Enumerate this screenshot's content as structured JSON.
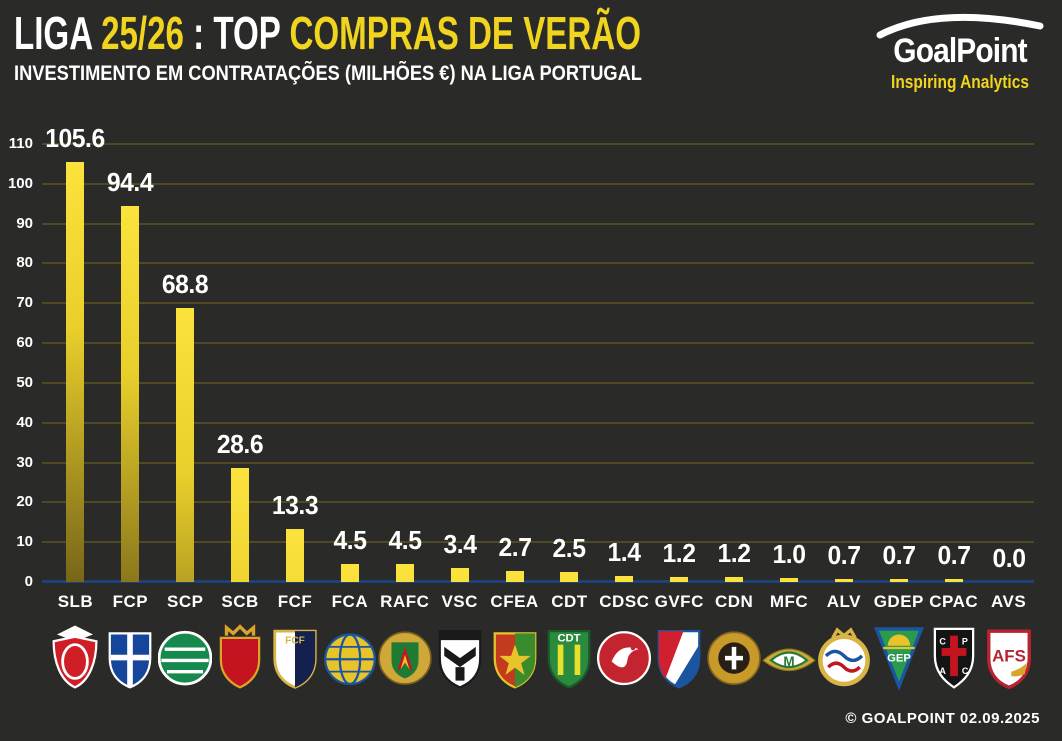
{
  "theme": {
    "background": "#2a2a28",
    "accent_yellow": "#f0d41e",
    "text_white": "#ffffff",
    "bar_top": "#fce23c",
    "bar_bottom": "#6f5e17",
    "gridline": "#4f4a24",
    "baseline_blue": "#1e4178"
  },
  "header": {
    "title_parts": [
      {
        "text": "LIGA ",
        "color": "#ffffff"
      },
      {
        "text": "25/26",
        "color": "#f0d41e"
      },
      {
        "text": " : TOP ",
        "color": "#ffffff"
      },
      {
        "text": "COMPRAS DE VERÃO",
        "color": "#f0d41e"
      }
    ],
    "subtitle": "INVESTIMENTO EM CONTRATAÇÕES (MILHÕES €) NA LIGA PORTUGAL",
    "brand": {
      "name": "GoalPoint",
      "tagline": "Inspiring Analytics"
    }
  },
  "chart_data": {
    "type": "bar",
    "title": "LIGA 25/26 : TOP COMPRAS DE VERÃO",
    "subtitle": "INVESTIMENTO EM CONTRATAÇÕES (MILHÕES €) NA LIGA PORTUGAL",
    "categories": [
      "SLB",
      "FCP",
      "SCP",
      "SCB",
      "FCF",
      "FCA",
      "RAFC",
      "VSC",
      "CFEA",
      "CDT",
      "CDSC",
      "GVFC",
      "CDN",
      "MFC",
      "ALV",
      "GDEP",
      "CPAC",
      "AVS"
    ],
    "values": [
      105.6,
      94.4,
      68.8,
      28.6,
      13.3,
      4.5,
      4.5,
      3.4,
      2.7,
      2.5,
      1.4,
      1.2,
      1.2,
      1.0,
      0.7,
      0.7,
      0.7,
      0.0
    ],
    "xlabel": "",
    "ylabel": "",
    "ylim": [
      0,
      110
    ],
    "ytick_step": 10,
    "grid": "horizontal",
    "legend": "none",
    "bar_color": "#f2d729",
    "value_labels": "above-bars"
  },
  "clubs": [
    {
      "abbr": "SLB",
      "logo": "slb",
      "colors": [
        "#d01e26",
        "#ffffff"
      ]
    },
    {
      "abbr": "FCP",
      "logo": "fcp",
      "colors": [
        "#16469b",
        "#ffffff"
      ]
    },
    {
      "abbr": "SCP",
      "logo": "scp",
      "colors": [
        "#168a4c",
        "#ffffff"
      ]
    },
    {
      "abbr": "SCB",
      "logo": "scb",
      "colors": [
        "#c41420",
        "#d8a52a"
      ]
    },
    {
      "abbr": "FCF",
      "logo": "fcf",
      "colors": [
        "#14204e",
        "#ffffff",
        "#d8b544"
      ]
    },
    {
      "abbr": "FCA",
      "logo": "fca",
      "colors": [
        "#e8c42a",
        "#1b55a0"
      ]
    },
    {
      "abbr": "RAFC",
      "logo": "rafc",
      "colors": [
        "#cfa83a",
        "#1f7a33",
        "#c41420"
      ]
    },
    {
      "abbr": "VSC",
      "logo": "vsc",
      "colors": [
        "#1a1a1a",
        "#ffffff"
      ]
    },
    {
      "abbr": "CFEA",
      "logo": "cfea",
      "colors": [
        "#c43a1e",
        "#3a8a2e",
        "#e8c42a"
      ]
    },
    {
      "abbr": "CDT",
      "logo": "cdt",
      "colors": [
        "#2a8a3e",
        "#e8e02a",
        "#ffffff"
      ]
    },
    {
      "abbr": "CDSC",
      "logo": "cdsc",
      "colors": [
        "#c42430",
        "#ffffff"
      ]
    },
    {
      "abbr": "GVFC",
      "logo": "gvfc",
      "colors": [
        "#d02030",
        "#1b55a0",
        "#ffffff"
      ]
    },
    {
      "abbr": "CDN",
      "logo": "cdn",
      "colors": [
        "#c89a2a",
        "#2a1f14",
        "#ffffff"
      ]
    },
    {
      "abbr": "MFC",
      "logo": "mfc",
      "colors": [
        "#2a7a3a",
        "#ffffff",
        "#cfa83a"
      ]
    },
    {
      "abbr": "ALV",
      "logo": "alv",
      "colors": [
        "#d8b544",
        "#ffffff",
        "#c41420"
      ]
    },
    {
      "abbr": "GDEP",
      "logo": "gdep",
      "colors": [
        "#1b55a0",
        "#2a9a4e",
        "#e8c42a"
      ]
    },
    {
      "abbr": "CPAC",
      "logo": "cpac",
      "colors": [
        "#141414",
        "#c41420",
        "#ffffff"
      ]
    },
    {
      "abbr": "AVS",
      "logo": "avs",
      "colors": [
        "#b52430",
        "#ffffff"
      ]
    }
  ],
  "footer": {
    "credit": "© GOALPOINT 02.09.2025"
  }
}
